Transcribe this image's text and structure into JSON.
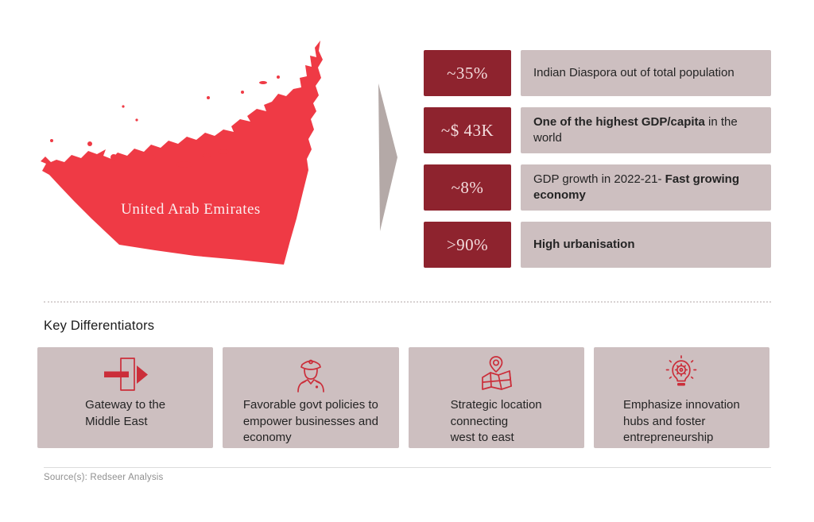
{
  "map": {
    "label": "United Arab Emirates"
  },
  "stats": [
    {
      "badge": "~35%",
      "segments": [
        {
          "text": "Indian Diaspora out of total population",
          "bold": false
        }
      ]
    },
    {
      "badge": "~$ 43K",
      "segments": [
        {
          "text": "One of the highest GDP/capita",
          "bold": true
        },
        {
          "text": " in the world",
          "bold": false
        }
      ]
    },
    {
      "badge": "~8%",
      "segments": [
        {
          "text": "GDP growth in 2022-21- ",
          "bold": false
        },
        {
          "text": "Fast growing economy",
          "bold": true
        }
      ]
    },
    {
      "badge": ">90%",
      "segments": [
        {
          "text": "High urbanisation",
          "bold": true
        }
      ]
    }
  ],
  "key_differentiators": {
    "title": "Key Differentiators",
    "cards": [
      {
        "icon": "gateway-icon",
        "text": "Gateway to the\nMiddle East"
      },
      {
        "icon": "police-officer-icon",
        "text": "Favorable govt policies to\nempower businesses and\neconomy"
      },
      {
        "icon": "map-pin-icon",
        "text": "Strategic location\nconnecting\nwest to east"
      },
      {
        "icon": "innovation-bulb-icon",
        "text": "Emphasize innovation\nhubs and foster\nentrepreneurship"
      }
    ]
  },
  "footer": {
    "source": "Source(s): Redseer Analysis"
  },
  "colors": {
    "map_red": "#ef3a45",
    "badge_maroon": "#8e232e",
    "panel_mauve": "#cdbfc0",
    "icon_red": "#cb2e3a",
    "arrow_taupe": "#b4a9a7",
    "badge_text": "#f3dcdd",
    "body_text": "#242424",
    "source_text": "#8f8f8f"
  }
}
